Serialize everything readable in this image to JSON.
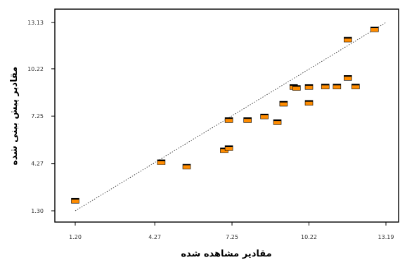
{
  "chart_data": {
    "type": "scatter",
    "title": "",
    "xlabel": "مقادیر مشاهده شده",
    "ylabel": "مقادیر پیش بینی شده",
    "xlim": [
      1.2,
      13.19
    ],
    "ylim": [
      1.3,
      13.13
    ],
    "x_ticks": [
      1.2,
      4.27,
      7.25,
      10.22,
      13.19
    ],
    "x_tick_labels": [
      "1.20",
      "4.27",
      "7.25",
      "10.22",
      "13.19"
    ],
    "y_ticks": [
      1.3,
      4.27,
      7.25,
      10.22,
      13.13
    ],
    "y_tick_labels": [
      "1.30",
      "4.27",
      "7.25",
      "10.22",
      "13.13"
    ],
    "grid": false,
    "legend": "none",
    "marker_color": "#ff8c00",
    "marker_edge_color": "#000000",
    "trend_line": {
      "style": "dotted",
      "color": "#444444",
      "from": [
        1.2,
        1.3
      ],
      "to": [
        13.19,
        13.13
      ]
    },
    "points": [
      {
        "x": 1.2,
        "y": 1.93
      },
      {
        "x": 4.52,
        "y": 4.35
      },
      {
        "x": 5.5,
        "y": 4.08
      },
      {
        "x": 6.95,
        "y": 5.1
      },
      {
        "x": 7.13,
        "y": 5.24
      },
      {
        "x": 7.13,
        "y": 7.0
      },
      {
        "x": 7.85,
        "y": 7.0
      },
      {
        "x": 8.5,
        "y": 7.23
      },
      {
        "x": 9.0,
        "y": 6.87
      },
      {
        "x": 9.24,
        "y": 8.03
      },
      {
        "x": 9.63,
        "y": 9.08
      },
      {
        "x": 9.74,
        "y": 9.02
      },
      {
        "x": 10.22,
        "y": 9.08
      },
      {
        "x": 10.22,
        "y": 8.08
      },
      {
        "x": 10.85,
        "y": 9.11
      },
      {
        "x": 11.3,
        "y": 9.11
      },
      {
        "x": 11.72,
        "y": 9.65
      },
      {
        "x": 11.72,
        "y": 12.05
      },
      {
        "x": 12.02,
        "y": 9.11
      },
      {
        "x": 12.75,
        "y": 12.7
      }
    ]
  }
}
